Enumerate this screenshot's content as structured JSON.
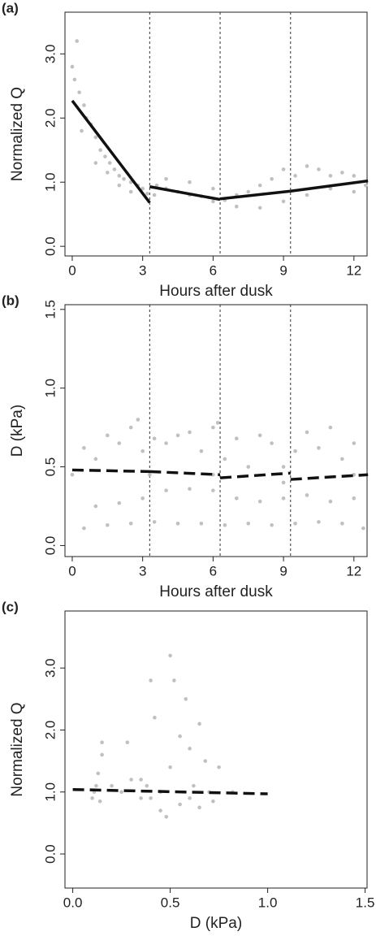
{
  "chart_data": [
    {
      "type": "scatter",
      "panel_label": "(a)",
      "y_label": "Normalized Q",
      "x_label": "Hours after dusk",
      "xlim": [
        -0.31,
        12.56
      ],
      "ylim": [
        -0.15,
        3.65
      ],
      "xticks": [
        0,
        3,
        6,
        9,
        12
      ],
      "yticks": [
        {
          "value": 0,
          "label": "0.0"
        },
        {
          "value": 1,
          "label": "1.0"
        },
        {
          "value": 2,
          "label": "2.0"
        },
        {
          "value": 3,
          "label": "3.0"
        }
      ],
      "vlines": [
        3.3,
        6.3,
        9.3
      ],
      "series": [
        {
          "color": "#c0c0c0",
          "x": [
            0,
            0.2,
            0.1,
            0.3,
            0.5,
            0.6,
            0.8,
            1,
            1.2,
            1.4,
            1.6,
            1.8,
            2,
            2.2,
            2.5,
            2.8,
            3,
            0.4,
            1,
            1.5,
            2,
            2.5,
            3.2,
            3.6,
            4,
            4.5,
            5,
            5.5,
            6,
            6.5,
            7,
            7.5,
            8,
            8.5,
            9,
            9.5,
            10,
            10.5,
            11,
            11.5,
            12,
            12.5,
            5,
            7,
            8,
            9,
            10,
            11,
            12,
            4,
            6,
            3.5
          ],
          "values": [
            2.8,
            3.2,
            2.6,
            2.4,
            2.2,
            2.0,
            1.9,
            1.7,
            1.5,
            1.4,
            1.3,
            1.2,
            1.1,
            1.05,
            1.0,
            0.95,
            0.9,
            1.8,
            1.3,
            1.15,
            0.95,
            0.85,
            0.82,
            0.95,
            0.9,
            0.85,
            0.8,
            0.78,
            0.7,
            0.72,
            0.8,
            0.85,
            0.95,
            1.05,
            1.2,
            1.1,
            1.25,
            1.2,
            1.1,
            1.15,
            1.1,
            0.95,
            1.0,
            0.62,
            0.6,
            0.7,
            0.8,
            0.9,
            0.85,
            1.05,
            0.9,
            0.8
          ]
        }
      ],
      "lines": [
        {
          "color": "#111111",
          "dashed": false,
          "x": [
            0,
            3.3
          ],
          "values": [
            2.27,
            0.68
          ]
        },
        {
          "color": "#111111",
          "dashed": false,
          "x": [
            3.3,
            6.3
          ],
          "values": [
            0.93,
            0.73
          ]
        },
        {
          "color": "#111111",
          "dashed": false,
          "x": [
            6.3,
            9.3
          ],
          "values": [
            0.74,
            0.86
          ]
        },
        {
          "color": "#111111",
          "dashed": false,
          "x": [
            9.3,
            12.6
          ],
          "values": [
            0.86,
            1.02
          ]
        }
      ]
    },
    {
      "type": "scatter",
      "panel_label": "(b)",
      "y_label": "D (kPa)",
      "x_label": "Hours after dusk",
      "xlim": [
        -0.31,
        12.56
      ],
      "ylim": [
        -0.07,
        1.53
      ],
      "xticks": [
        0,
        3,
        6,
        9,
        12
      ],
      "yticks": [
        {
          "value": 0,
          "label": "0.0"
        },
        {
          "value": 0.5,
          "label": "0.5"
        },
        {
          "value": 1,
          "label": "1.0"
        },
        {
          "value": 1.5,
          "label": "1.5"
        }
      ],
      "vlines": [
        3.3,
        6.3,
        9.3
      ],
      "series": [
        {
          "color": "#c0c0c0",
          "x": [
            0.5,
            1.5,
            2.5,
            3.5,
            4.5,
            5.5,
            6.5,
            7.5,
            8.5,
            9.5,
            10.5,
            11.5,
            12.4,
            1,
            2,
            3,
            4,
            5,
            6,
            7,
            8,
            9,
            10,
            11,
            12,
            0,
            0.5,
            1,
            1.5,
            2,
            2.5,
            3,
            3.5,
            4,
            4.5,
            5,
            5.5,
            6,
            6.5,
            7,
            7.5,
            8,
            8.5,
            9,
            9.5,
            10,
            10.5,
            11,
            11.5,
            12,
            3.3,
            6,
            9,
            12,
            2.8,
            6.2
          ],
          "values": [
            0.11,
            0.13,
            0.14,
            0.15,
            0.14,
            0.14,
            0.13,
            0.14,
            0.13,
            0.14,
            0.15,
            0.14,
            0.11,
            0.25,
            0.27,
            0.3,
            0.35,
            0.36,
            0.35,
            0.3,
            0.28,
            0.3,
            0.32,
            0.28,
            0.3,
            0.45,
            0.62,
            0.55,
            0.7,
            0.65,
            0.75,
            0.6,
            0.68,
            0.65,
            0.7,
            0.72,
            0.6,
            0.75,
            0.55,
            0.68,
            0.5,
            0.7,
            0.65,
            0.5,
            0.6,
            0.72,
            0.62,
            0.75,
            0.55,
            0.65,
            0.45,
            0.45,
            0.4,
            0.45,
            0.8,
            0.78
          ]
        }
      ],
      "lines": [
        {
          "color": "#111111",
          "dashed": true,
          "x": [
            0,
            3.3
          ],
          "values": [
            0.48,
            0.47
          ]
        },
        {
          "color": "#111111",
          "dashed": true,
          "x": [
            3.3,
            6.3
          ],
          "values": [
            0.47,
            0.45
          ]
        },
        {
          "color": "#111111",
          "dashed": true,
          "x": [
            6.3,
            9.3
          ],
          "values": [
            0.43,
            0.46
          ]
        },
        {
          "color": "#111111",
          "dashed": true,
          "x": [
            9.3,
            12.6
          ],
          "values": [
            0.42,
            0.45
          ]
        }
      ]
    },
    {
      "type": "scatter",
      "panel_label": "(c)",
      "y_label": "Normalized Q",
      "x_label": "D (kPa)",
      "xlim": [
        -0.04,
        1.51
      ],
      "ylim": [
        -0.55,
        3.92
      ],
      "xticks": [
        {
          "value": 0,
          "label": "0.0"
        },
        {
          "value": 0.5,
          "label": "0.5"
        },
        {
          "value": 1,
          "label": "1.0"
        },
        {
          "value": 1.5,
          "label": "1.5"
        }
      ],
      "yticks": [
        {
          "value": 0,
          "label": "0.0"
        },
        {
          "value": 1,
          "label": "1.0"
        },
        {
          "value": 2,
          "label": "2.0"
        },
        {
          "value": 3,
          "label": "3.0"
        }
      ],
      "series": [
        {
          "color": "#c0c0c0",
          "x": [
            0.1,
            0.12,
            0.13,
            0.15,
            0.14,
            0.11,
            0.15,
            0.28,
            0.3,
            0.35,
            0.38,
            0.4,
            0.4,
            0.42,
            0.45,
            0.48,
            0.5,
            0.52,
            0.55,
            0.55,
            0.58,
            0.6,
            0.6,
            0.62,
            0.65,
            0.65,
            0.68,
            0.7,
            0.72,
            0.75,
            0.82,
            0.45,
            0.35,
            0.5,
            0.25,
            0.2
          ],
          "values": [
            0.9,
            1.1,
            1.3,
            1.8,
            0.85,
            1.0,
            1.6,
            1.8,
            1.2,
            1.2,
            1.1,
            0.9,
            2.8,
            2.2,
            0.7,
            0.6,
            3.2,
            2.8,
            1.9,
            0.8,
            2.5,
            1.7,
            0.9,
            1.1,
            2.1,
            0.75,
            1.5,
            1.0,
            0.85,
            1.4,
            1.0,
            1.0,
            0.9,
            1.4,
            1.0,
            1.1
          ]
        }
      ],
      "lines": [
        {
          "color": "#111111",
          "dashed": true,
          "x": [
            0,
            1.0
          ],
          "values": [
            1.04,
            0.97
          ]
        }
      ]
    }
  ]
}
